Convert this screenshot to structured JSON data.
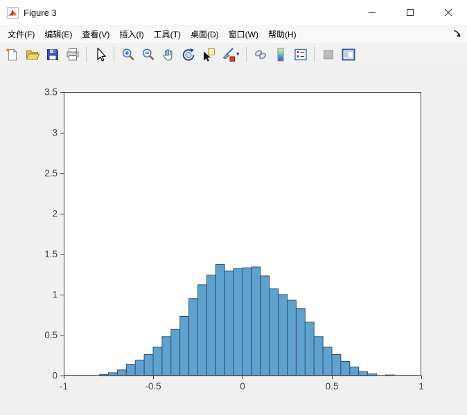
{
  "window": {
    "title": "Figure 3",
    "app_icon": "matlab-logo",
    "controls": [
      {
        "id": "minimize",
        "name": "minimize"
      },
      {
        "id": "maximize",
        "name": "maximize"
      },
      {
        "id": "close",
        "name": "close"
      }
    ]
  },
  "menu_bar": {
    "items": [
      {
        "id": "file",
        "label": "文件(F)"
      },
      {
        "id": "edit",
        "label": "编辑(E)"
      },
      {
        "id": "view",
        "label": "查看(V)"
      },
      {
        "id": "insert",
        "label": "插入(I)"
      },
      {
        "id": "tools",
        "label": "工具(T)"
      },
      {
        "id": "desktop",
        "label": "桌面(D)"
      },
      {
        "id": "window",
        "label": "窗口(W)"
      },
      {
        "id": "help",
        "label": "帮助(H)"
      }
    ],
    "dock_arrow_icon": "dock-figure-arrow"
  },
  "toolbar": {
    "buttons": [
      {
        "type": "button",
        "id": "new-figure"
      },
      {
        "type": "button",
        "id": "open-file"
      },
      {
        "type": "button",
        "id": "save-figure"
      },
      {
        "type": "button",
        "id": "print-figure"
      },
      {
        "type": "separator"
      },
      {
        "type": "button",
        "id": "edit-plot"
      },
      {
        "type": "separator"
      },
      {
        "type": "button",
        "id": "zoom-in"
      },
      {
        "type": "button",
        "id": "zoom-out"
      },
      {
        "type": "button",
        "id": "pan"
      },
      {
        "type": "button",
        "id": "rotate-3d"
      },
      {
        "type": "button",
        "id": "data-cursor"
      },
      {
        "type": "button",
        "id": "brush-data",
        "has_dropdown": true
      },
      {
        "type": "separator"
      },
      {
        "type": "button",
        "id": "link-plot"
      },
      {
        "type": "button",
        "id": "insert-colorbar"
      },
      {
        "type": "button",
        "id": "insert-legend"
      },
      {
        "type": "separator"
      },
      {
        "type": "button",
        "id": "hide-plot-tools",
        "disabled": true
      },
      {
        "type": "button",
        "id": "show-plot-tools-dock-figure"
      }
    ]
  },
  "chart_data": {
    "type": "bar",
    "subtype": "histogram",
    "title": "",
    "xlabel": "",
    "ylabel": "",
    "xlim": [
      -1,
      1
    ],
    "ylim": [
      0,
      3.5
    ],
    "xticks": [
      -1,
      -0.5,
      0,
      0.5,
      1
    ],
    "xtick_labels": [
      "-1",
      "-0.5",
      "0",
      "0.5",
      "1"
    ],
    "yticks": [
      0,
      0.5,
      1,
      1.5,
      2,
      2.5,
      3,
      3.5
    ],
    "ytick_labels": [
      "0",
      "0.5",
      "1",
      "1.5",
      "2",
      "2.5",
      "3",
      "3.5"
    ],
    "grid": false,
    "legend": null,
    "bin_width": 0.05,
    "bin_starts": [
      -0.8,
      -0.75,
      -0.7,
      -0.65,
      -0.6,
      -0.55,
      -0.5,
      -0.45,
      -0.4,
      -0.35,
      -0.3,
      -0.25,
      -0.2,
      -0.15,
      -0.1,
      -0.05,
      0.0,
      0.05,
      0.1,
      0.15,
      0.2,
      0.25,
      0.3,
      0.35,
      0.4,
      0.45,
      0.5,
      0.55,
      0.6,
      0.65,
      0.7,
      0.75,
      0.8
    ],
    "values": [
      0.015,
      0.035,
      0.07,
      0.14,
      0.19,
      0.26,
      0.35,
      0.48,
      0.57,
      0.73,
      0.95,
      1.12,
      1.24,
      1.37,
      1.29,
      1.32,
      1.33,
      1.34,
      1.23,
      1.07,
      1.0,
      0.93,
      0.83,
      0.66,
      0.48,
      0.35,
      0.26,
      0.175,
      0.105,
      0.047,
      0.021,
      0.0,
      0.008
    ],
    "colors": {
      "bar_face": "#5fa2d0",
      "bar_edge": "#30506b",
      "axis": "#3c3c3c",
      "tick_label": "#404040",
      "plot_background": "#ffffff",
      "figure_background": "#f0f0f0"
    }
  }
}
